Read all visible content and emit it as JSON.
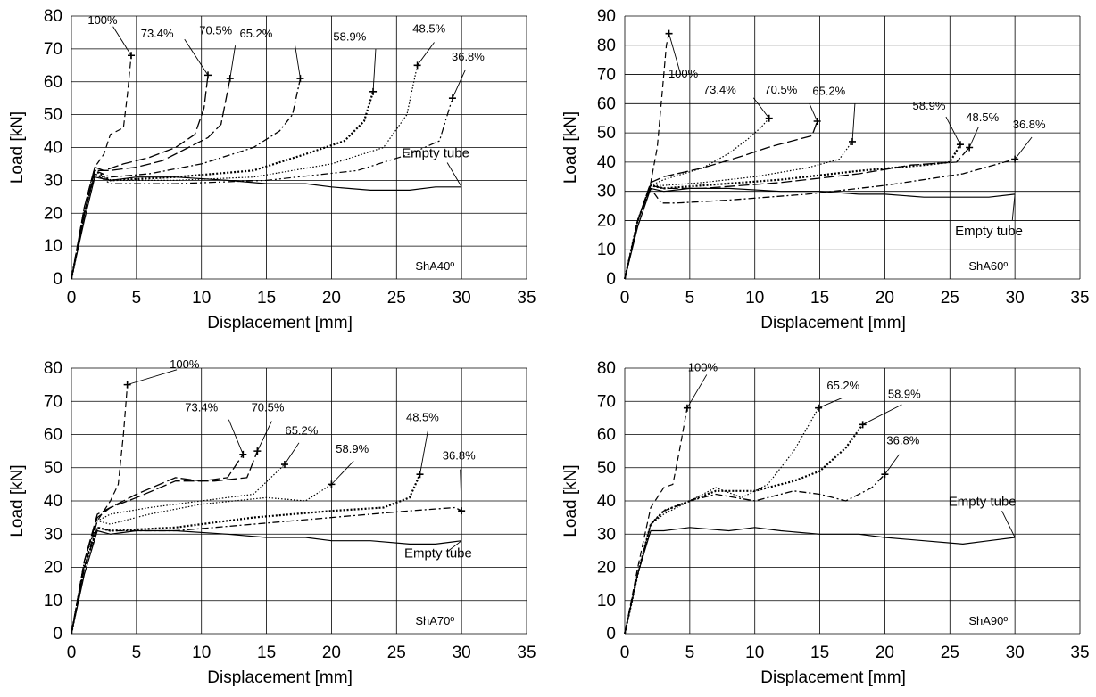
{
  "chart_data": [
    {
      "type": "line",
      "panel_label": "ShA40º",
      "xlabel": "Displacement [mm]",
      "ylabel": "Load [kN]",
      "xlim": [
        0,
        35
      ],
      "ylim": [
        0,
        80
      ],
      "xticks": [
        "0",
        "5",
        "10",
        "15",
        "20",
        "25",
        "30",
        "35"
      ],
      "yticks": [
        "0",
        "10",
        "20",
        "30",
        "40",
        "50",
        "60",
        "70",
        "80"
      ],
      "grid": "horizontal",
      "series": [
        {
          "name": "100%",
          "style": "dashed",
          "x": [
            0,
            1,
            1.8,
            2.5,
            3,
            3.5,
            4,
            4.3,
            4.6
          ],
          "y": [
            0,
            22,
            34,
            38,
            44,
            45,
            46,
            56,
            68
          ]
        },
        {
          "name": "73.4%",
          "style": "longdash",
          "x": [
            0,
            1,
            1.8,
            2.5,
            4,
            6,
            8,
            9.5,
            10.2,
            10.5
          ],
          "y": [
            0,
            22,
            34,
            33,
            35,
            37,
            40,
            44,
            52,
            62
          ]
        },
        {
          "name": "70.5%",
          "style": "longdash",
          "x": [
            0,
            1,
            1.8,
            3,
            5,
            7,
            9,
            10.5,
            11.5,
            12.2
          ],
          "y": [
            0,
            20,
            33,
            33,
            34,
            36,
            40,
            43,
            47,
            61
          ]
        },
        {
          "name": "65.2%",
          "style": "dashdot",
          "x": [
            0,
            1,
            1.8,
            3,
            6,
            10,
            14,
            16,
            17,
            17.6
          ],
          "y": [
            0,
            20,
            33,
            31,
            32,
            35,
            40,
            45,
            50,
            61
          ]
        },
        {
          "name": "58.9%",
          "style": "dotted-bold",
          "x": [
            0,
            1,
            1.8,
            3,
            8,
            14,
            18,
            21,
            22.5,
            23.2
          ],
          "y": [
            0,
            20,
            33,
            30,
            31,
            33,
            38,
            42,
            48,
            57
          ]
        },
        {
          "name": "48.5%",
          "style": "dotted",
          "x": [
            0,
            1,
            1.8,
            3,
            8,
            14,
            20,
            24,
            25.8,
            26.6
          ],
          "y": [
            0,
            20,
            32,
            30,
            30,
            31,
            35,
            40,
            50,
            65
          ]
        },
        {
          "name": "36.8%",
          "style": "dashdotdot",
          "x": [
            0,
            1,
            1.8,
            3,
            8,
            15,
            22,
            26,
            28.3,
            29.3
          ],
          "y": [
            0,
            20,
            32,
            29,
            29,
            30,
            33,
            38,
            42,
            55
          ]
        },
        {
          "name": "Empty tube",
          "style": "solid",
          "x": [
            0,
            1,
            1.8,
            3,
            5,
            8,
            12,
            15,
            18,
            20,
            23,
            26,
            28,
            30
          ],
          "y": [
            0,
            18,
            31,
            30,
            31,
            31,
            30,
            29,
            29,
            28,
            27,
            27,
            28,
            28
          ]
        }
      ],
      "annotations": [
        "100%",
        "73.4%",
        "70.5%",
        "65.2%",
        "58.9%",
        "48.5%",
        "36.8%",
        "Empty tube"
      ]
    },
    {
      "type": "line",
      "panel_label": "ShA60º",
      "xlabel": "Displacement [mm]",
      "ylabel": "Load [kN]",
      "xlim": [
        0,
        35
      ],
      "ylim": [
        0,
        90
      ],
      "xticks": [
        "0",
        "5",
        "10",
        "15",
        "20",
        "25",
        "30",
        "35"
      ],
      "yticks": [
        "0",
        "10",
        "20",
        "30",
        "40",
        "50",
        "60",
        "70",
        "80",
        "90"
      ],
      "grid": "horizontal",
      "series": [
        {
          "name": "100%",
          "style": "dashed",
          "x": [
            0,
            1,
            2,
            2.5,
            2.9,
            3.2,
            3.4
          ],
          "y": [
            0,
            20,
            33,
            45,
            65,
            80,
            84
          ]
        },
        {
          "name": "73.4%",
          "style": "dotted",
          "x": [
            0,
            1,
            2,
            3,
            6,
            8,
            9.5,
            10.5,
            11.1
          ],
          "y": [
            0,
            20,
            32,
            34,
            38,
            43,
            48,
            52,
            55
          ]
        },
        {
          "name": "70.5%",
          "style": "longdash",
          "x": [
            0,
            1,
            2,
            3,
            6,
            9,
            11,
            13.5,
            14.4,
            14.8
          ],
          "y": [
            0,
            20,
            33,
            35,
            38,
            42,
            45,
            48,
            49,
            54
          ]
        },
        {
          "name": "65.2%",
          "style": "dotted",
          "x": [
            0,
            1,
            2,
            3,
            6,
            10,
            14,
            16.5,
            17.5
          ],
          "y": [
            0,
            20,
            32,
            32,
            33,
            35,
            38,
            41,
            47
          ]
        },
        {
          "name": "58.9%",
          "style": "dotted-bold",
          "x": [
            0,
            1,
            2,
            3,
            6,
            12,
            18,
            23,
            25,
            25.8
          ],
          "y": [
            0,
            20,
            32,
            31,
            32,
            34,
            37,
            39,
            40,
            46
          ]
        },
        {
          "name": "48.5%",
          "style": "longdash",
          "x": [
            0,
            1,
            2,
            3,
            6,
            12,
            18,
            22,
            25.5,
            26.5
          ],
          "y": [
            0,
            20,
            32,
            31,
            31,
            33,
            36,
            39,
            40,
            45
          ]
        },
        {
          "name": "36.8%",
          "style": "dashdot",
          "x": [
            0,
            1,
            2,
            2.8,
            4,
            8,
            14,
            20,
            26,
            30
          ],
          "y": [
            0,
            20,
            31,
            26,
            26,
            27,
            29,
            32,
            36,
            41
          ]
        },
        {
          "name": "Empty tube",
          "style": "solid",
          "x": [
            0,
            1,
            2,
            3,
            5,
            8,
            12,
            15,
            18,
            20,
            23,
            26,
            28,
            30
          ],
          "y": [
            0,
            18,
            31,
            30,
            31,
            31,
            30,
            30,
            29,
            29,
            28,
            28,
            28,
            29
          ]
        }
      ],
      "annotations": [
        "100%",
        "73.4%",
        "70.5%",
        "65.2%",
        "58.9%",
        "48.5%",
        "36.8%",
        "Empty tube"
      ]
    },
    {
      "type": "line",
      "panel_label": "ShA70º",
      "xlabel": "Displacement [mm]",
      "ylabel": "Load [kN]",
      "xlim": [
        0,
        35
      ],
      "ylim": [
        0,
        80
      ],
      "xticks": [
        "0",
        "5",
        "10",
        "15",
        "20",
        "25",
        "30",
        "35"
      ],
      "yticks": [
        "0",
        "10",
        "20",
        "30",
        "40",
        "50",
        "60",
        "70",
        "80"
      ],
      "grid": "horizontal",
      "series": [
        {
          "name": "100%",
          "style": "dashed",
          "x": [
            0,
            1,
            2,
            3,
            3.6,
            4,
            4.3
          ],
          "y": [
            0,
            20,
            34,
            40,
            45,
            60,
            75
          ]
        },
        {
          "name": "73.4%",
          "style": "longdash",
          "x": [
            0,
            1,
            2,
            3,
            5,
            8,
            10,
            12,
            13.2
          ],
          "y": [
            0,
            22,
            36,
            38,
            42,
            47,
            46,
            47,
            54
          ]
        },
        {
          "name": "70.5%",
          "style": "longdash",
          "x": [
            0,
            1,
            2,
            3,
            5,
            8,
            11,
            13.5,
            14.3
          ],
          "y": [
            0,
            22,
            35,
            38,
            41,
            46,
            46,
            47,
            55
          ]
        },
        {
          "name": "65.2%",
          "style": "dotted",
          "x": [
            0,
            1,
            2,
            3,
            6,
            10,
            14,
            16.4
          ],
          "y": [
            0,
            22,
            34,
            36,
            38,
            40,
            42,
            51
          ]
        },
        {
          "name": "58.9%",
          "style": "dotted",
          "x": [
            0,
            1,
            2,
            3,
            6,
            10,
            15,
            18,
            20
          ],
          "y": [
            0,
            22,
            34,
            33,
            36,
            39,
            41,
            40,
            45
          ]
        },
        {
          "name": "48.5%",
          "style": "dotted-bold",
          "x": [
            0,
            1,
            2,
            3,
            8,
            14,
            20,
            24,
            26,
            26.8
          ],
          "y": [
            0,
            20,
            32,
            31,
            32,
            35,
            37,
            38,
            41,
            48
          ]
        },
        {
          "name": "36.8%",
          "style": "dashdot",
          "x": [
            0,
            1,
            2,
            3,
            8,
            14,
            20,
            26,
            29.5,
            30
          ],
          "y": [
            0,
            20,
            32,
            31,
            31,
            33,
            35,
            37,
            38,
            37
          ]
        },
        {
          "name": "Empty tube",
          "style": "solid",
          "x": [
            0,
            1,
            2,
            3,
            5,
            8,
            12,
            15,
            18,
            20,
            23,
            26,
            28,
            30
          ],
          "y": [
            0,
            18,
            31,
            30,
            31,
            31,
            30,
            29,
            29,
            28,
            28,
            27,
            27,
            28
          ]
        }
      ],
      "annotations": [
        "100%",
        "73.4%",
        "70.5%",
        "65.2%",
        "58.9%",
        "48.5%",
        "36.8%",
        "Empty tube"
      ]
    },
    {
      "type": "line",
      "panel_label": "ShA90º",
      "xlabel": "Displacement [mm]",
      "ylabel": "Load [kN]",
      "xlim": [
        0,
        35
      ],
      "ylim": [
        0,
        80
      ],
      "xticks": [
        "0",
        "5",
        "10",
        "15",
        "20",
        "25",
        "30",
        "35"
      ],
      "yticks": [
        "0",
        "10",
        "20",
        "30",
        "40",
        "50",
        "60",
        "70",
        "80"
      ],
      "grid": "horizontal",
      "series": [
        {
          "name": "100%",
          "style": "dashed",
          "x": [
            0,
            1,
            2,
            3,
            3.7,
            4.2,
            4.8
          ],
          "y": [
            0,
            20,
            38,
            44,
            45,
            55,
            68
          ]
        },
        {
          "name": "65.2%",
          "style": "dotted",
          "x": [
            0,
            1,
            2,
            3,
            5,
            7,
            9,
            11,
            13,
            14.9
          ],
          "y": [
            0,
            18,
            33,
            36,
            40,
            44,
            41,
            45,
            55,
            68
          ]
        },
        {
          "name": "58.9%",
          "style": "dotted-bold",
          "x": [
            0,
            1,
            2,
            3,
            5,
            7,
            10,
            13,
            15,
            17,
            18.3
          ],
          "y": [
            0,
            18,
            33,
            37,
            40,
            43,
            43,
            46,
            49,
            56,
            63
          ]
        },
        {
          "name": "36.8%",
          "style": "dashdot",
          "x": [
            0,
            1,
            2,
            3,
            5,
            7,
            10,
            13,
            15,
            17,
            19,
            20
          ],
          "y": [
            0,
            18,
            33,
            37,
            40,
            42,
            40,
            43,
            42,
            40,
            44,
            48
          ]
        },
        {
          "name": "Empty tube",
          "style": "solid",
          "x": [
            0,
            1,
            2,
            3,
            5,
            8,
            10,
            12,
            15,
            18,
            20,
            23,
            26,
            28,
            30
          ],
          "y": [
            0,
            18,
            31,
            31,
            32,
            31,
            32,
            31,
            30,
            30,
            29,
            28,
            27,
            28,
            29
          ]
        }
      ],
      "annotations": [
        "100%",
        "65.2%",
        "58.9%",
        "36.8%",
        "Empty tube"
      ]
    }
  ]
}
